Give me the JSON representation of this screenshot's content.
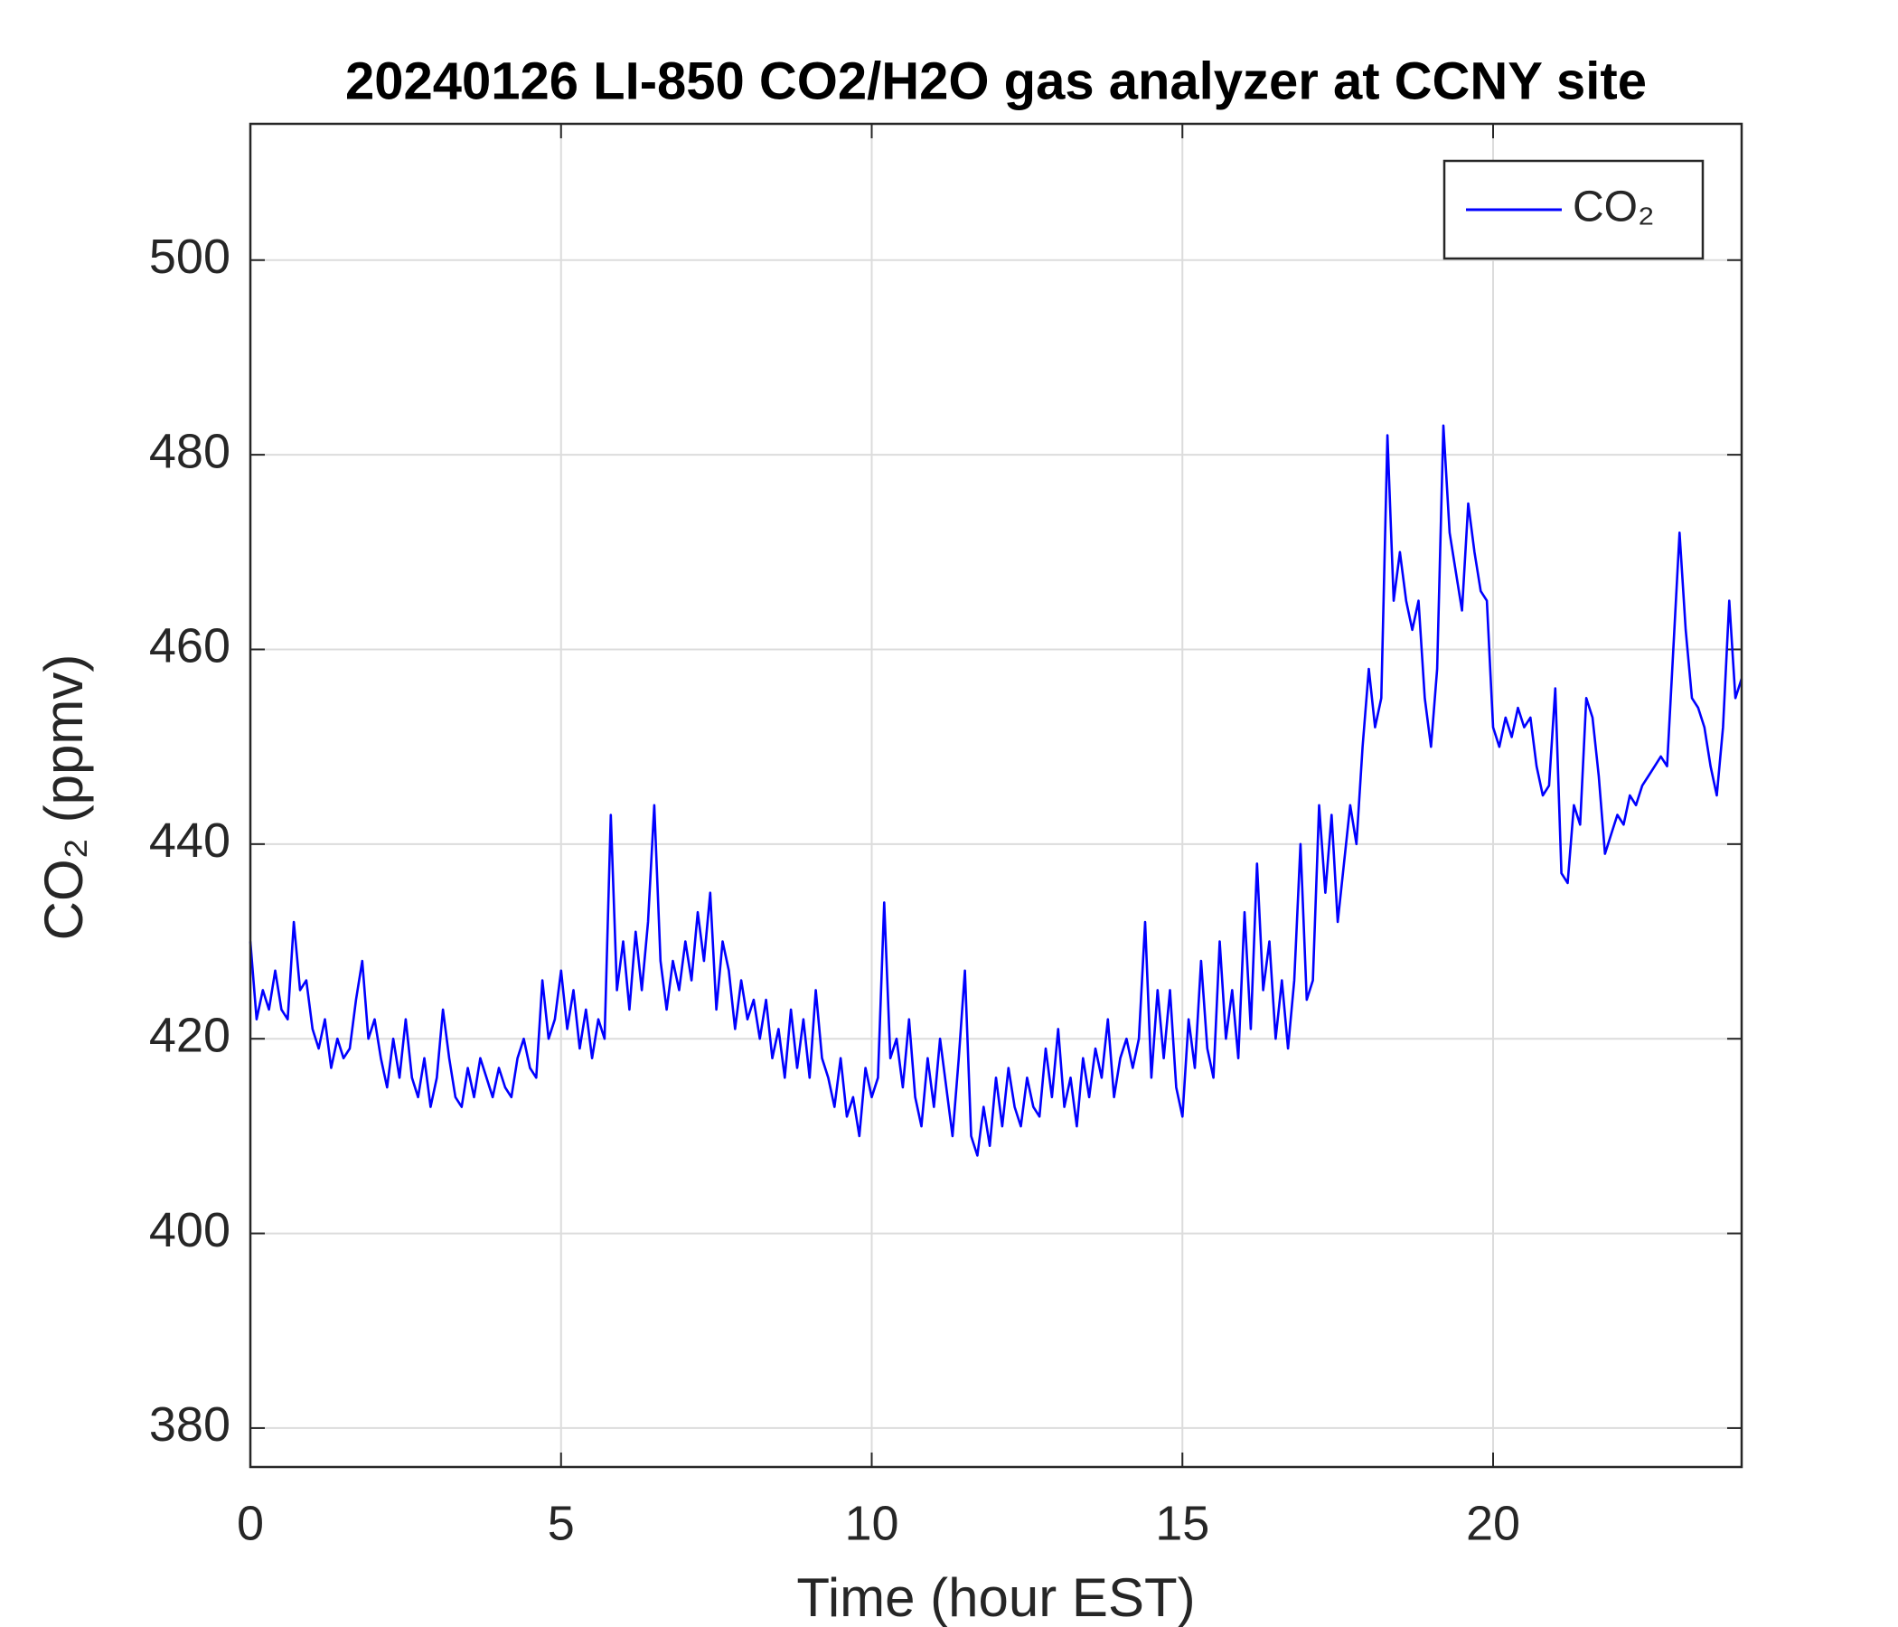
{
  "chart_data": {
    "type": "line",
    "title": "20240126 LI-850 CO2/H2O gas analyzer at CCNY site",
    "xlabel": "Time (hour EST)",
    "ylabel": "CO₂ (ppmv)",
    "xlim": [
      0,
      24
    ],
    "ylim": [
      376,
      514
    ],
    "xticks": [
      0,
      5,
      10,
      15,
      20
    ],
    "yticks": [
      380,
      400,
      420,
      440,
      460,
      480,
      500
    ],
    "grid": true,
    "legend": "upper right",
    "x": [
      0,
      0.1,
      0.2,
      0.3,
      0.4,
      0.5,
      0.6,
      0.7,
      0.8,
      0.9,
      1,
      1.1,
      1.2,
      1.3,
      1.4,
      1.5,
      1.6,
      1.7,
      1.8,
      1.9,
      2,
      2.1,
      2.2,
      2.3,
      2.4,
      2.5,
      2.6,
      2.7,
      2.8,
      2.9,
      3,
      3.1,
      3.2,
      3.3,
      3.4,
      3.5,
      3.6,
      3.7,
      3.8,
      3.9,
      4,
      4.1,
      4.2,
      4.3,
      4.4,
      4.5,
      4.6,
      4.7,
      4.8,
      4.9,
      5,
      5.1,
      5.2,
      5.3,
      5.4,
      5.5,
      5.6,
      5.7,
      5.8,
      5.9,
      6,
      6.1,
      6.2,
      6.3,
      6.4,
      6.5,
      6.6,
      6.7,
      6.8,
      6.9,
      7,
      7.1,
      7.2,
      7.3,
      7.4,
      7.5,
      7.6,
      7.7,
      7.8,
      7.9,
      8,
      8.1,
      8.2,
      8.3,
      8.4,
      8.5,
      8.6,
      8.7,
      8.8,
      8.9,
      9,
      9.1,
      9.2,
      9.3,
      9.4,
      9.5,
      9.6,
      9.7,
      9.8,
      9.9,
      10,
      10.1,
      10.2,
      10.3,
      10.4,
      10.5,
      10.6,
      10.7,
      10.8,
      10.9,
      11,
      11.1,
      11.2,
      11.3,
      11.4,
      11.5,
      11.6,
      11.7,
      11.8,
      11.9,
      12,
      12.1,
      12.2,
      12.3,
      12.4,
      12.5,
      12.6,
      12.7,
      12.8,
      12.9,
      13,
      13.1,
      13.2,
      13.3,
      13.4,
      13.5,
      13.6,
      13.7,
      13.8,
      13.9,
      14,
      14.1,
      14.2,
      14.3,
      14.4,
      14.5,
      14.6,
      14.7,
      14.8,
      14.9,
      15,
      15.1,
      15.2,
      15.3,
      15.4,
      15.5,
      15.6,
      15.7,
      15.8,
      15.9,
      16,
      16.1,
      16.2,
      16.3,
      16.4,
      16.5,
      16.6,
      16.7,
      16.8,
      16.9,
      17,
      17.1,
      17.2,
      17.3,
      17.4,
      17.5,
      17.6,
      17.7,
      17.8,
      17.9,
      18,
      18.1,
      18.2,
      18.3,
      18.4,
      18.5,
      18.6,
      18.7,
      18.8,
      18.9,
      19,
      19.1,
      19.2,
      19.3,
      19.4,
      19.5,
      19.6,
      19.7,
      19.8,
      19.9,
      20,
      20.1,
      20.2,
      20.3,
      20.4,
      20.5,
      20.6,
      20.7,
      20.8,
      20.9,
      21,
      21.1,
      21.2,
      21.3,
      21.4,
      21.5,
      21.6,
      21.7,
      21.8,
      21.9,
      22,
      22.1,
      22.2,
      22.3,
      22.4,
      22.5,
      22.6,
      22.7,
      22.8,
      22.9,
      23,
      23.1,
      23.2,
      23.3,
      23.4,
      23.5,
      23.6,
      23.7,
      23.8,
      23.9,
      24
    ],
    "series": [
      {
        "name": "CO₂",
        "color": "#0000ff",
        "values": [
          430,
          422,
          425,
          423,
          427,
          423,
          422,
          432,
          425,
          426,
          421,
          419,
          422,
          417,
          420,
          418,
          419,
          424,
          428,
          420,
          422,
          418,
          415,
          420,
          416,
          422,
          416,
          414,
          418,
          413,
          416,
          423,
          418,
          414,
          413,
          417,
          414,
          418,
          416,
          414,
          417,
          415,
          414,
          418,
          420,
          417,
          416,
          426,
          420,
          422,
          427,
          421,
          425,
          419,
          423,
          418,
          422,
          420,
          443,
          425,
          430,
          423,
          431,
          425,
          432,
          444,
          428,
          423,
          428,
          425,
          430,
          426,
          433,
          428,
          435,
          423,
          430,
          427,
          421,
          426,
          422,
          424,
          420,
          424,
          418,
          421,
          416,
          423,
          417,
          422,
          416,
          425,
          418,
          416,
          413,
          418,
          412,
          414,
          410,
          417,
          414,
          416,
          434,
          418,
          420,
          415,
          422,
          414,
          411,
          418,
          413,
          420,
          415,
          410,
          418,
          427,
          410,
          408,
          413,
          409,
          416,
          411,
          417,
          413,
          411,
          416,
          413,
          412,
          419,
          414,
          421,
          413,
          416,
          411,
          418,
          414,
          419,
          416,
          422,
          414,
          418,
          420,
          417,
          420,
          432,
          416,
          425,
          418,
          425,
          415,
          412,
          422,
          417,
          428,
          419,
          416,
          430,
          420,
          425,
          418,
          433,
          421,
          438,
          425,
          430,
          420,
          426,
          419,
          426,
          440,
          424,
          426,
          444,
          435,
          443,
          432,
          438,
          444,
          440,
          450,
          458,
          452,
          455,
          482,
          465,
          470,
          465,
          462,
          465,
          455,
          450,
          458,
          483,
          472,
          468,
          464,
          475,
          470,
          466,
          465,
          452,
          450,
          453,
          451,
          454,
          452,
          453,
          448,
          445,
          446,
          456,
          437,
          436,
          444,
          442,
          455,
          453,
          447,
          439,
          441,
          443,
          442,
          445,
          444,
          446,
          447,
          448,
          449,
          448,
          460,
          472,
          462,
          455,
          454,
          452,
          448,
          445,
          452,
          465,
          455,
          457
        ]
      }
    ]
  }
}
